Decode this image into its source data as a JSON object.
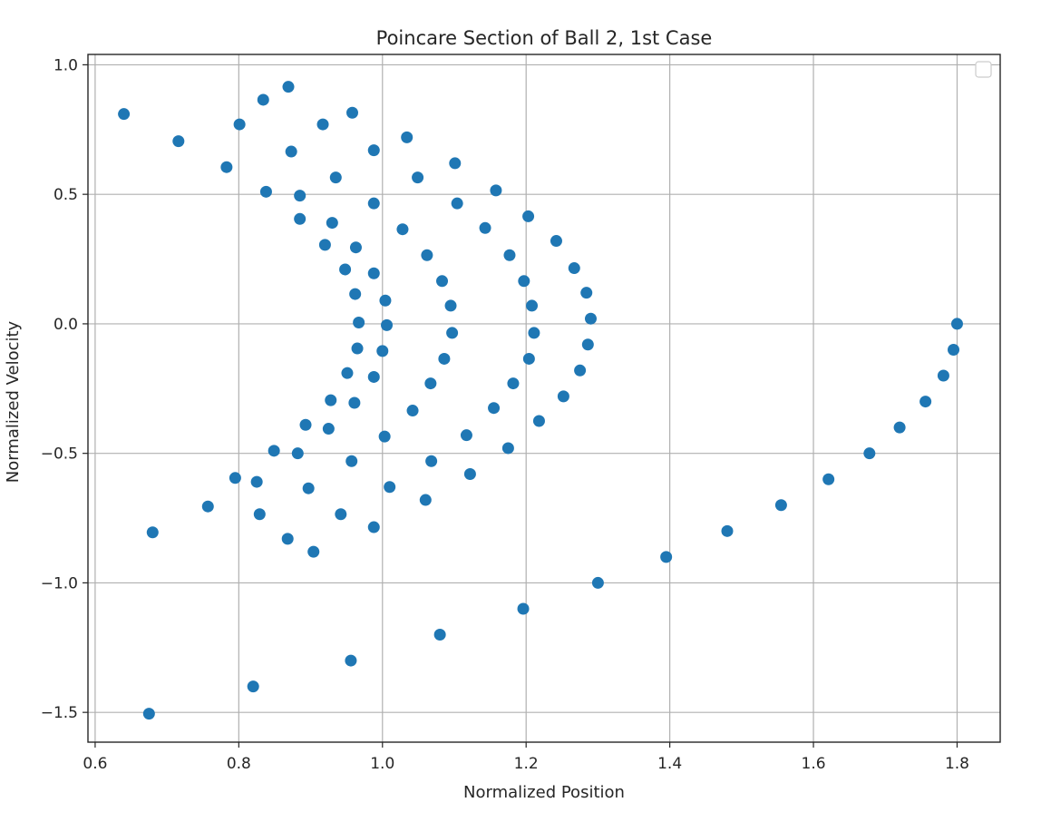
{
  "chart_data": {
    "type": "scatter",
    "title": "Poincare Section of Ball 2, 1st Case",
    "xlabel": "Normalized Position",
    "ylabel": "Normalized Velocity",
    "xlim": [
      0.59,
      1.86
    ],
    "ylim": [
      -1.615,
      1.04
    ],
    "xticks": [
      0.6,
      0.8,
      1.0,
      1.2,
      1.4,
      1.6,
      1.8
    ],
    "xtick_labels": [
      "0.6",
      "0.8",
      "1.0",
      "1.2",
      "1.4",
      "1.6",
      "1.8"
    ],
    "yticks": [
      1.0,
      0.5,
      0.0,
      -0.5,
      -1.0,
      -1.5
    ],
    "ytick_labels": [
      "1.0",
      "0.5",
      "0.0",
      "−0.5",
      "−1.0",
      "−1.5"
    ],
    "grid": true,
    "legend": "top-right (empty)",
    "marker_color": "#1f77b4",
    "series": [
      {
        "points": [
          [
            0.64,
            0.81
          ],
          [
            0.716,
            0.705
          ],
          [
            0.783,
            0.605
          ],
          [
            0.801,
            0.77
          ],
          [
            0.834,
            0.865
          ],
          [
            0.869,
            0.915
          ],
          [
            0.838,
            0.51
          ],
          [
            0.873,
            0.665
          ],
          [
            0.885,
            0.495
          ],
          [
            0.885,
            0.405
          ],
          [
            0.917,
            0.77
          ],
          [
            0.935,
            0.565
          ],
          [
            0.958,
            0.815
          ],
          [
            0.93,
            0.39
          ],
          [
            0.92,
            0.305
          ],
          [
            0.948,
            0.21
          ],
          [
            0.963,
            0.295
          ],
          [
            0.962,
            0.115
          ],
          [
            0.967,
            0.005
          ],
          [
            0.965,
            -0.095
          ],
          [
            0.951,
            -0.19
          ],
          [
            0.961,
            -0.305
          ],
          [
            0.928,
            -0.295
          ],
          [
            0.925,
            -0.405
          ],
          [
            0.893,
            -0.39
          ],
          [
            0.882,
            -0.5
          ],
          [
            0.849,
            -0.49
          ],
          [
            0.957,
            -0.53
          ],
          [
            0.897,
            -0.635
          ],
          [
            0.825,
            -0.61
          ],
          [
            0.795,
            -0.595
          ],
          [
            0.829,
            -0.735
          ],
          [
            0.757,
            -0.705
          ],
          [
            0.68,
            -0.805
          ],
          [
            0.868,
            -0.83
          ],
          [
            0.904,
            -0.88
          ],
          [
            0.942,
            -0.735
          ],
          [
            0.988,
            -0.785
          ],
          [
            0.988,
            -0.205
          ],
          [
            0.988,
            0.195
          ],
          [
            0.988,
            0.465
          ],
          [
            0.988,
            0.67
          ],
          [
            1.034,
            0.72
          ],
          [
            1.049,
            0.565
          ],
          [
            1.028,
            0.365
          ],
          [
            1.004,
            0.09
          ],
          [
            1.006,
            -0.005
          ],
          [
            1.0,
            -0.105
          ],
          [
            1.042,
            -0.335
          ],
          [
            1.003,
            -0.435
          ],
          [
            1.01,
            -0.63
          ],
          [
            1.068,
            -0.53
          ],
          [
            1.06,
            -0.68
          ],
          [
            1.067,
            -0.23
          ],
          [
            1.086,
            -0.135
          ],
          [
            1.097,
            -0.035
          ],
          [
            1.095,
            0.07
          ],
          [
            1.083,
            0.165
          ],
          [
            1.062,
            0.265
          ],
          [
            1.101,
            0.62
          ],
          [
            1.104,
            0.465
          ],
          [
            1.143,
            0.37
          ],
          [
            1.158,
            0.515
          ],
          [
            1.117,
            -0.43
          ],
          [
            1.122,
            -0.58
          ],
          [
            1.155,
            -0.325
          ],
          [
            1.175,
            -0.48
          ],
          [
            1.182,
            -0.23
          ],
          [
            1.204,
            -0.135
          ],
          [
            1.211,
            -0.035
          ],
          [
            1.208,
            0.07
          ],
          [
            1.197,
            0.165
          ],
          [
            1.177,
            0.265
          ],
          [
            1.203,
            0.415
          ],
          [
            1.242,
            0.32
          ],
          [
            1.267,
            0.215
          ],
          [
            1.284,
            0.12
          ],
          [
            1.29,
            0.02
          ],
          [
            1.286,
            -0.08
          ],
          [
            1.275,
            -0.18
          ],
          [
            1.252,
            -0.28
          ],
          [
            1.218,
            -0.375
          ],
          [
            1.3,
            -1.0
          ],
          [
            1.196,
            -1.1
          ],
          [
            1.08,
            -1.2
          ],
          [
            0.956,
            -1.3
          ],
          [
            0.82,
            -1.4
          ],
          [
            0.675,
            -1.505
          ],
          [
            1.395,
            -0.9
          ],
          [
            1.48,
            -0.8
          ],
          [
            1.555,
            -0.7
          ],
          [
            1.621,
            -0.6
          ],
          [
            1.678,
            -0.5
          ],
          [
            1.72,
            -0.4
          ],
          [
            1.756,
            -0.3
          ],
          [
            1.781,
            -0.2
          ],
          [
            1.795,
            -0.1
          ],
          [
            1.8,
            0.0
          ]
        ]
      }
    ]
  }
}
